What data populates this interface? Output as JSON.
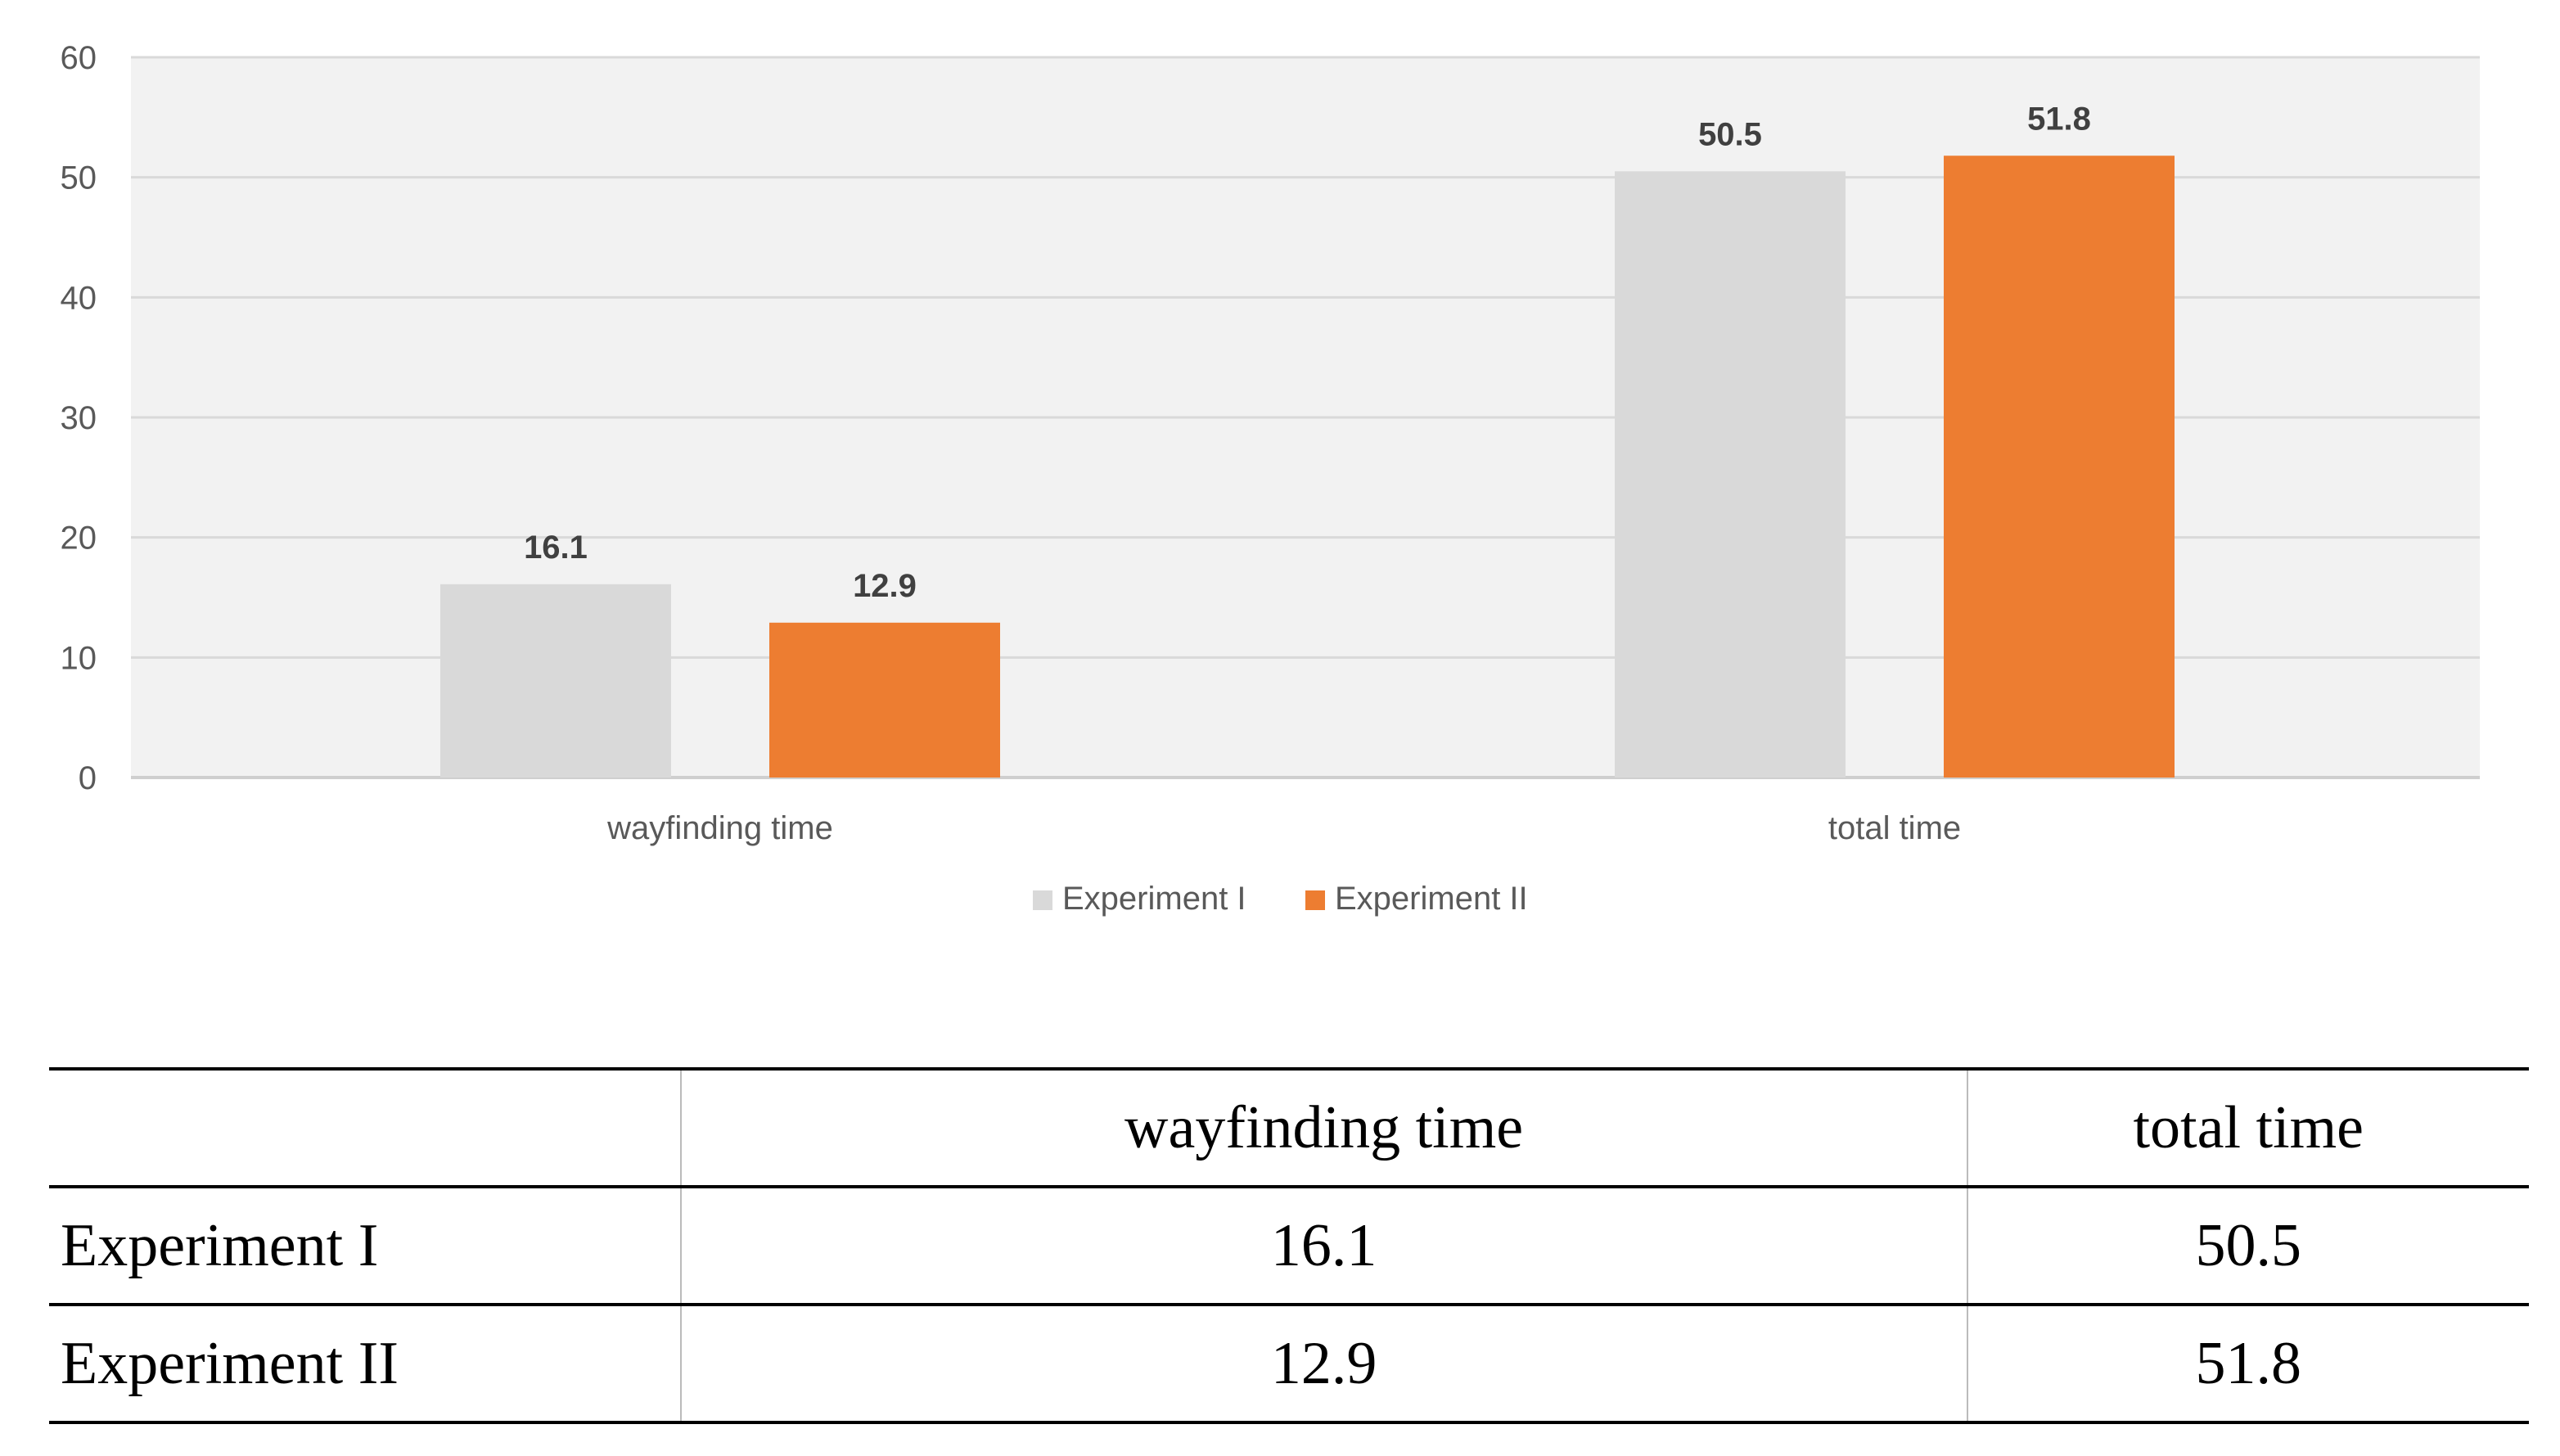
{
  "chart_data": {
    "type": "bar",
    "categories": [
      "wayfinding time",
      "total time"
    ],
    "series": [
      {
        "name": "Experiment I",
        "values": [
          16.1,
          50.5
        ],
        "color": "#d9d9d9"
      },
      {
        "name": "Experiment II",
        "values": [
          12.9,
          51.8
        ],
        "color": "#ed7d31"
      }
    ],
    "ylim": [
      0,
      60
    ],
    "yticks": [
      0,
      10,
      20,
      30,
      40,
      50,
      60
    ],
    "grid": true,
    "legend_position": "bottom",
    "plot_background": "#f2f2f2"
  },
  "table": {
    "headers": [
      "",
      "wayfinding time",
      "total time"
    ],
    "rows": [
      [
        "Experiment I",
        "16.1",
        "50.5"
      ],
      [
        "Experiment II",
        "12.9",
        "51.8"
      ]
    ]
  }
}
